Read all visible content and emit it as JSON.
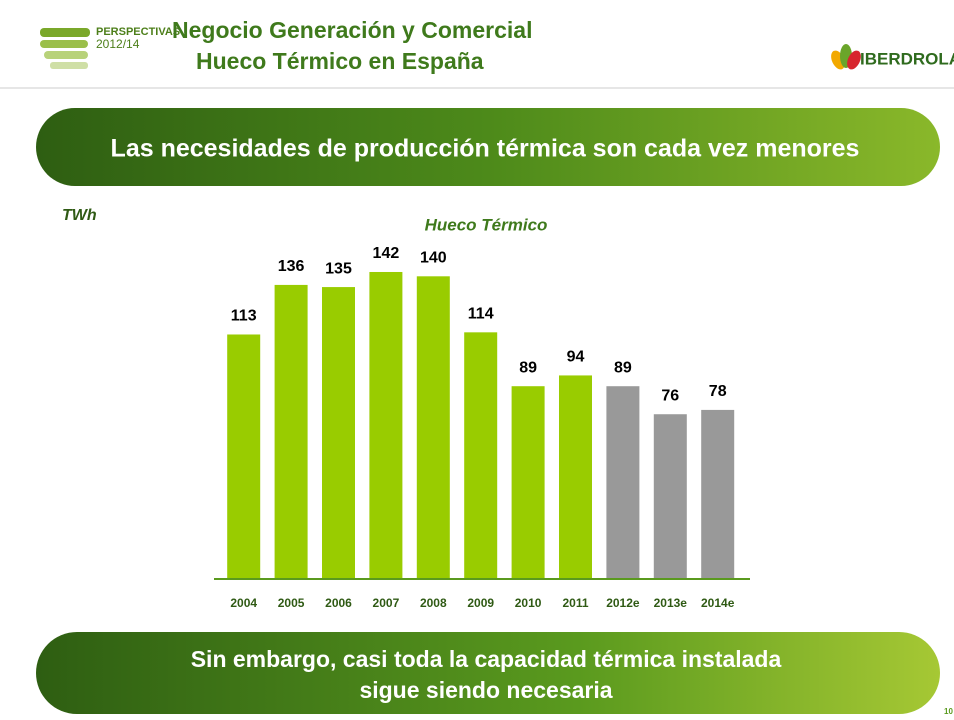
{
  "header": {
    "brand_top": "PERSPECTIVAS",
    "brand_years": "2012/14",
    "title_line1": "Negocio Generación y Comercial",
    "title_line2": "Hueco Térmico en España",
    "logo": "IBERDROLA"
  },
  "banner_top": "Las necesidades de producción térmica son cada vez menores",
  "banner_bottom": [
    "Sin embargo, casi toda la capacidad térmica instalada",
    "sigue siendo necesaria"
  ],
  "page_number": "10",
  "chart_data": {
    "type": "bar",
    "title": "Hueco Térmico",
    "unit_label": "TWh",
    "categories": [
      "2004",
      "2005",
      "2006",
      "2007",
      "2008",
      "2009",
      "2010",
      "2011",
      "2012e",
      "2013e",
      "2014e"
    ],
    "values": [
      113,
      136,
      135,
      142,
      140,
      114,
      89,
      94,
      89,
      76,
      78
    ],
    "colors": [
      "#99cc00",
      "#99cc00",
      "#99cc00",
      "#99cc00",
      "#99cc00",
      "#99cc00",
      "#99cc00",
      "#99cc00",
      "#999999",
      "#999999",
      "#999999"
    ]
  }
}
